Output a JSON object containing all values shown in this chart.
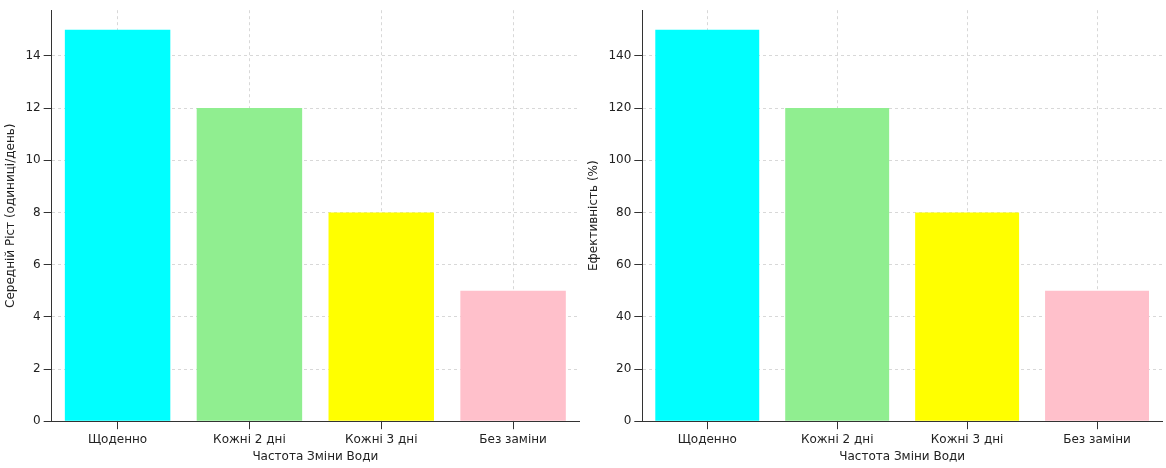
{
  "chart_data": [
    {
      "type": "bar",
      "xlabel": "Частота Зміни Води",
      "ylabel": "Середній Ріст (одиниці/день)",
      "categories": [
        "Щоденно",
        "Кожні 2 дні",
        "Кожні 3 дні",
        "Без заміни"
      ],
      "values": [
        15,
        12,
        8,
        5
      ],
      "colors": [
        "#00ffff",
        "#90ee90",
        "#ffff00",
        "#ffc0cb"
      ],
      "ylim": [
        0,
        15.75
      ],
      "yticks": [
        0,
        2,
        4,
        6,
        8,
        10,
        12,
        14
      ],
      "grid": true,
      "legend": false
    },
    {
      "type": "bar",
      "xlabel": "Частота Зміни Води",
      "ylabel": "Ефективність (%)",
      "categories": [
        "Щоденно",
        "Кожні 2 дні",
        "Кожні 3 дні",
        "Без заміни"
      ],
      "values": [
        150,
        120,
        80,
        50
      ],
      "colors": [
        "#00ffff",
        "#90ee90",
        "#ffff00",
        "#ffc0cb"
      ],
      "ylim": [
        0,
        157.5
      ],
      "yticks": [
        0,
        20,
        40,
        60,
        80,
        100,
        120,
        140
      ],
      "grid": true,
      "legend": false
    }
  ]
}
